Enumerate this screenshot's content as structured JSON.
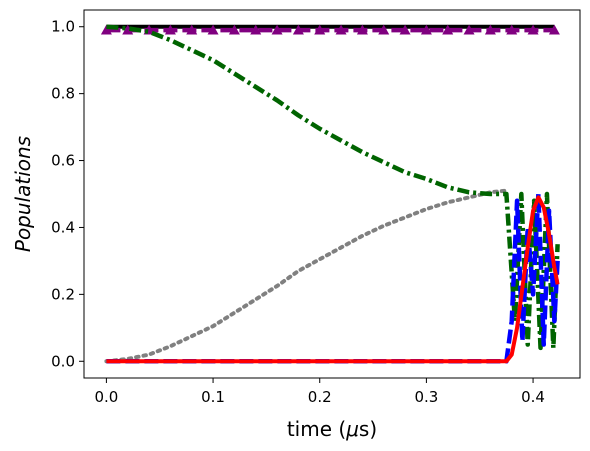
{
  "chart_data": {
    "type": "line",
    "title": "",
    "xlabel": "time ($\\mu$s)",
    "ylabel": "Populations",
    "x_label_parts": {
      "prefix": "time (",
      "mu": "μ",
      "suffix": "s)"
    },
    "xlim": [
      -0.021,
      0.444
    ],
    "ylim": [
      -0.05,
      1.05
    ],
    "x_ticks": [
      0.0,
      0.1,
      0.2,
      0.3,
      0.4
    ],
    "x_tick_labels": [
      "0.0",
      "0.1",
      "0.2",
      "0.3",
      "0.4"
    ],
    "y_ticks": [
      0.0,
      0.2,
      0.4,
      0.6,
      0.8,
      1.0
    ],
    "y_tick_labels": [
      "0.0",
      "0.2",
      "0.4",
      "0.6",
      "0.8",
      "1.0"
    ],
    "grid": false,
    "legend": "none",
    "series": [
      {
        "color": "#000000",
        "style": "solid",
        "marker": "none",
        "x": [
          0.0,
          0.06,
          0.12,
          0.18,
          0.24,
          0.3,
          0.36,
          0.42
        ],
        "y": [
          1.0,
          1.0,
          1.0,
          1.0,
          1.0,
          1.0,
          1.0,
          1.0
        ]
      },
      {
        "color": "#800080",
        "style": "dashed",
        "marker": "triangle",
        "x": [
          0.0,
          0.02,
          0.04,
          0.06,
          0.08,
          0.1,
          0.12,
          0.14,
          0.16,
          0.18,
          0.2,
          0.22,
          0.24,
          0.26,
          0.28,
          0.3,
          0.32,
          0.34,
          0.36,
          0.38,
          0.4,
          0.42
        ],
        "y": [
          0.99,
          0.99,
          0.99,
          0.99,
          0.99,
          0.99,
          0.99,
          0.99,
          0.99,
          0.99,
          0.99,
          0.99,
          0.99,
          0.99,
          0.99,
          0.99,
          0.99,
          0.99,
          0.99,
          0.99,
          0.99,
          0.99
        ]
      },
      {
        "color": "#808080",
        "style": "dotted",
        "marker": "none",
        "x": [
          0.0,
          0.02,
          0.04,
          0.06,
          0.08,
          0.1,
          0.12,
          0.14,
          0.16,
          0.18,
          0.2,
          0.22,
          0.24,
          0.26,
          0.28,
          0.3,
          0.32,
          0.34,
          0.36,
          0.375
        ],
        "y": [
          0.0,
          0.007,
          0.02,
          0.045,
          0.075,
          0.105,
          0.145,
          0.185,
          0.225,
          0.27,
          0.305,
          0.34,
          0.375,
          0.405,
          0.43,
          0.455,
          0.475,
          0.49,
          0.505,
          0.51
        ]
      },
      {
        "color": "#006400",
        "style": "dashdot",
        "marker": "none",
        "x": [
          0.0,
          0.02,
          0.04,
          0.06,
          0.08,
          0.1,
          0.12,
          0.14,
          0.16,
          0.18,
          0.2,
          0.22,
          0.24,
          0.26,
          0.28,
          0.3,
          0.32,
          0.34,
          0.36,
          0.375,
          0.383,
          0.389,
          0.395,
          0.401,
          0.407,
          0.413,
          0.419,
          0.423
        ],
        "y": [
          1.0,
          0.995,
          0.985,
          0.96,
          0.93,
          0.9,
          0.86,
          0.82,
          0.78,
          0.735,
          0.695,
          0.66,
          0.625,
          0.595,
          0.565,
          0.545,
          0.52,
          0.505,
          0.5,
          0.5,
          0.12,
          0.5,
          0.05,
          0.48,
          0.04,
          0.5,
          0.04,
          0.35
        ]
      },
      {
        "color": "#0000ff",
        "style": "dashed",
        "marker": "none",
        "x": [
          0.0,
          0.04,
          0.08,
          0.12,
          0.16,
          0.2,
          0.24,
          0.28,
          0.32,
          0.36,
          0.375,
          0.38,
          0.385,
          0.39,
          0.395,
          0.4,
          0.405,
          0.41,
          0.415,
          0.42,
          0.423
        ],
        "y": [
          0.0,
          0.0,
          0.0,
          0.0,
          0.0,
          0.0,
          0.0,
          0.0,
          0.0,
          0.0,
          0.0,
          0.12,
          0.48,
          0.06,
          0.4,
          0.2,
          0.5,
          0.05,
          0.45,
          0.12,
          0.3
        ]
      },
      {
        "color": "#ff0000",
        "style": "solid",
        "marker": "none",
        "x": [
          0.0,
          0.05,
          0.1,
          0.15,
          0.2,
          0.25,
          0.3,
          0.35,
          0.375,
          0.38,
          0.385,
          0.39,
          0.395,
          0.4,
          0.405,
          0.41,
          0.415,
          0.42,
          0.423
        ],
        "y": [
          0.0,
          0.0,
          0.0,
          0.0,
          0.0,
          0.0,
          0.0,
          0.0,
          0.0,
          0.02,
          0.1,
          0.22,
          0.34,
          0.45,
          0.49,
          0.46,
          0.38,
          0.28,
          0.23
        ]
      }
    ]
  }
}
